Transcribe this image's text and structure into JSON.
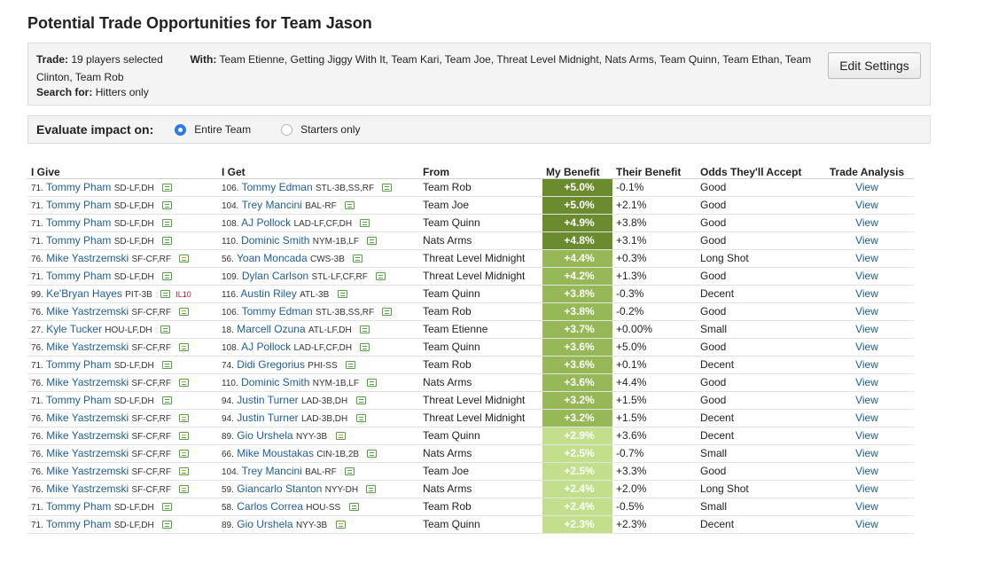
{
  "page": {
    "title": "Potential Trade Opportunities for Team Jason",
    "edit_button": "Edit Settings"
  },
  "settings": {
    "trade_label": "Trade:",
    "trade_value": "19 players selected",
    "with_label": "With:",
    "with_value": "Team Etienne, Getting Jiggy With It, Team Kari, Team Joe, Threat Level Midnight, Nats Arms, Team Quinn, Team Ethan, Team Clinton, Team Rob",
    "search_label": "Search for:",
    "search_value": "Hitters only"
  },
  "evaluate": {
    "label": "Evaluate impact on:",
    "options": [
      {
        "label": "Entire Team",
        "selected": true
      },
      {
        "label": "Starters only",
        "selected": false
      }
    ]
  },
  "table": {
    "headers": [
      "I Give",
      "I Get",
      "From",
      "My Benefit",
      "Their Benefit",
      "Odds They'll Accept",
      "Trade Analysis"
    ],
    "benefit_colors": {
      "dark": "#6a8c2e",
      "medium": "#97b857",
      "light": "#c4df8c"
    },
    "rows": [
      {
        "give_rank": "71.",
        "give_name": "Tommy Pham",
        "give_pos": "SD-LF,DH",
        "give_note": "note",
        "give_il": "",
        "get_rank": "106.",
        "get_name": "Tommy Edman",
        "get_pos": "STL-3B,SS,RF",
        "get_note": "note",
        "from": "Team Rob",
        "my_benefit": "+5.0%",
        "tier": "dark",
        "their_benefit": "-0.1%",
        "odds": "Good",
        "view": "View"
      },
      {
        "give_rank": "71.",
        "give_name": "Tommy Pham",
        "give_pos": "SD-LF,DH",
        "give_note": "note",
        "give_il": "",
        "get_rank": "104.",
        "get_name": "Trey Mancini",
        "get_pos": "BAL-RF",
        "get_note": "note",
        "from": "Team Joe",
        "my_benefit": "+5.0%",
        "tier": "dark",
        "their_benefit": "+2.1%",
        "odds": "Good",
        "view": "View"
      },
      {
        "give_rank": "71.",
        "give_name": "Tommy Pham",
        "give_pos": "SD-LF,DH",
        "give_note": "note",
        "give_il": "",
        "get_rank": "108.",
        "get_name": "AJ Pollock",
        "get_pos": "LAD-LF,CF,DH",
        "get_note": "note",
        "from": "Team Quinn",
        "my_benefit": "+4.9%",
        "tier": "dark",
        "their_benefit": "+3.8%",
        "odds": "Good",
        "view": "View"
      },
      {
        "give_rank": "71.",
        "give_name": "Tommy Pham",
        "give_pos": "SD-LF,DH",
        "give_note": "note",
        "give_il": "",
        "get_rank": "110.",
        "get_name": "Dominic Smith",
        "get_pos": "NYM-1B,LF",
        "get_note": "note",
        "from": "Nats Arms",
        "my_benefit": "+4.8%",
        "tier": "dark",
        "their_benefit": "+3.1%",
        "odds": "Good",
        "view": "View"
      },
      {
        "give_rank": "76.",
        "give_name": "Mike Yastrzemski",
        "give_pos": "SF-CF,RF",
        "give_note": "alert",
        "give_il": "",
        "get_rank": "56.",
        "get_name": "Yoan Moncada",
        "get_pos": "CWS-3B",
        "get_note": "note",
        "from": "Threat Level Midnight",
        "my_benefit": "+4.4%",
        "tier": "medium",
        "their_benefit": "+0.3%",
        "odds": "Long Shot",
        "view": "View"
      },
      {
        "give_rank": "71.",
        "give_name": "Tommy Pham",
        "give_pos": "SD-LF,DH",
        "give_note": "note",
        "give_il": "",
        "get_rank": "109.",
        "get_name": "Dylan Carlson",
        "get_pos": "STL-LF,CF,RF",
        "get_note": "note",
        "from": "Threat Level Midnight",
        "my_benefit": "+4.2%",
        "tier": "medium",
        "their_benefit": "+1.3%",
        "odds": "Good",
        "view": "View"
      },
      {
        "give_rank": "99.",
        "give_name": "Ke'Bryan Hayes",
        "give_pos": "PIT-3B",
        "give_note": "note",
        "give_il": "IL10",
        "get_rank": "116.",
        "get_name": "Austin Riley",
        "get_pos": "ATL-3B",
        "get_note": "note",
        "from": "Team Quinn",
        "my_benefit": "+3.8%",
        "tier": "medium",
        "their_benefit": "-0.3%",
        "odds": "Decent",
        "view": "View"
      },
      {
        "give_rank": "76.",
        "give_name": "Mike Yastrzemski",
        "give_pos": "SF-CF,RF",
        "give_note": "alert",
        "give_il": "",
        "get_rank": "106.",
        "get_name": "Tommy Edman",
        "get_pos": "STL-3B,SS,RF",
        "get_note": "note",
        "from": "Team Rob",
        "my_benefit": "+3.8%",
        "tier": "medium",
        "their_benefit": "-0.2%",
        "odds": "Good",
        "view": "View"
      },
      {
        "give_rank": "27.",
        "give_name": "Kyle Tucker",
        "give_pos": "HOU-LF,DH",
        "give_note": "note",
        "give_il": "",
        "get_rank": "18.",
        "get_name": "Marcell Ozuna",
        "get_pos": "ATL-LF,DH",
        "get_note": "note",
        "from": "Team Etienne",
        "my_benefit": "+3.7%",
        "tier": "medium",
        "their_benefit": "+0.00%",
        "odds": "Small",
        "view": "View"
      },
      {
        "give_rank": "76.",
        "give_name": "Mike Yastrzemski",
        "give_pos": "SF-CF,RF",
        "give_note": "alert",
        "give_il": "",
        "get_rank": "108.",
        "get_name": "AJ Pollock",
        "get_pos": "LAD-LF,CF,DH",
        "get_note": "note",
        "from": "Team Quinn",
        "my_benefit": "+3.6%",
        "tier": "medium",
        "their_benefit": "+5.0%",
        "odds": "Good",
        "view": "View"
      },
      {
        "give_rank": "71.",
        "give_name": "Tommy Pham",
        "give_pos": "SD-LF,DH",
        "give_note": "note",
        "give_il": "",
        "get_rank": "74.",
        "get_name": "Didi Gregorius",
        "get_pos": "PHI-SS",
        "get_note": "note",
        "from": "Team Rob",
        "my_benefit": "+3.6%",
        "tier": "medium",
        "their_benefit": "+0.1%",
        "odds": "Decent",
        "view": "View"
      },
      {
        "give_rank": "76.",
        "give_name": "Mike Yastrzemski",
        "give_pos": "SF-CF,RF",
        "give_note": "alert",
        "give_il": "",
        "get_rank": "110.",
        "get_name": "Dominic Smith",
        "get_pos": "NYM-1B,LF",
        "get_note": "note",
        "from": "Nats Arms",
        "my_benefit": "+3.6%",
        "tier": "medium",
        "their_benefit": "+4.4%",
        "odds": "Good",
        "view": "View"
      },
      {
        "give_rank": "71.",
        "give_name": "Tommy Pham",
        "give_pos": "SD-LF,DH",
        "give_note": "note",
        "give_il": "",
        "get_rank": "94.",
        "get_name": "Justin Turner",
        "get_pos": "LAD-3B,DH",
        "get_note": "note",
        "from": "Threat Level Midnight",
        "my_benefit": "+3.2%",
        "tier": "medium",
        "their_benefit": "+1.5%",
        "odds": "Good",
        "view": "View"
      },
      {
        "give_rank": "76.",
        "give_name": "Mike Yastrzemski",
        "give_pos": "SF-CF,RF",
        "give_note": "alert",
        "give_il": "",
        "get_rank": "94.",
        "get_name": "Justin Turner",
        "get_pos": "LAD-3B,DH",
        "get_note": "note",
        "from": "Threat Level Midnight",
        "my_benefit": "+3.2%",
        "tier": "medium",
        "their_benefit": "+1.5%",
        "odds": "Decent",
        "view": "View"
      },
      {
        "give_rank": "76.",
        "give_name": "Mike Yastrzemski",
        "give_pos": "SF-CF,RF",
        "give_note": "alert",
        "give_il": "",
        "get_rank": "89.",
        "get_name": "Gio Urshela",
        "get_pos": "NYY-3B",
        "get_note": "alert",
        "from": "Team Quinn",
        "my_benefit": "+2.9%",
        "tier": "light",
        "their_benefit": "+3.6%",
        "odds": "Decent",
        "view": "View"
      },
      {
        "give_rank": "76.",
        "give_name": "Mike Yastrzemski",
        "give_pos": "SF-CF,RF",
        "give_note": "alert",
        "give_il": "",
        "get_rank": "66.",
        "get_name": "Mike Moustakas",
        "get_pos": "CIN-1B,2B",
        "get_note": "note",
        "from": "Nats Arms",
        "my_benefit": "+2.5%",
        "tier": "light",
        "their_benefit": "-0.7%",
        "odds": "Small",
        "view": "View"
      },
      {
        "give_rank": "76.",
        "give_name": "Mike Yastrzemski",
        "give_pos": "SF-CF,RF",
        "give_note": "alert",
        "give_il": "",
        "get_rank": "104.",
        "get_name": "Trey Mancini",
        "get_pos": "BAL-RF",
        "get_note": "note",
        "from": "Team Joe",
        "my_benefit": "+2.5%",
        "tier": "light",
        "their_benefit": "+3.3%",
        "odds": "Good",
        "view": "View"
      },
      {
        "give_rank": "76.",
        "give_name": "Mike Yastrzemski",
        "give_pos": "SF-CF,RF",
        "give_note": "alert",
        "give_il": "",
        "get_rank": "59.",
        "get_name": "Giancarlo Stanton",
        "get_pos": "NYY-DH",
        "get_note": "note",
        "from": "Nats Arms",
        "my_benefit": "+2.4%",
        "tier": "light",
        "their_benefit": "+2.0%",
        "odds": "Long Shot",
        "view": "View"
      },
      {
        "give_rank": "71.",
        "give_name": "Tommy Pham",
        "give_pos": "SD-LF,DH",
        "give_note": "note",
        "give_il": "",
        "get_rank": "58.",
        "get_name": "Carlos Correa",
        "get_pos": "HOU-SS",
        "get_note": "note",
        "from": "Team Rob",
        "my_benefit": "+2.4%",
        "tier": "light",
        "their_benefit": "-0.5%",
        "odds": "Small",
        "view": "View"
      },
      {
        "give_rank": "71.",
        "give_name": "Tommy Pham",
        "give_pos": "SD-LF,DH",
        "give_note": "note",
        "give_il": "",
        "get_rank": "89.",
        "get_name": "Gio Urshela",
        "get_pos": "NYY-3B",
        "get_note": "alert",
        "from": "Team Quinn",
        "my_benefit": "+2.3%",
        "tier": "light",
        "their_benefit": "+2.3%",
        "odds": "Decent",
        "view": "View"
      }
    ]
  }
}
